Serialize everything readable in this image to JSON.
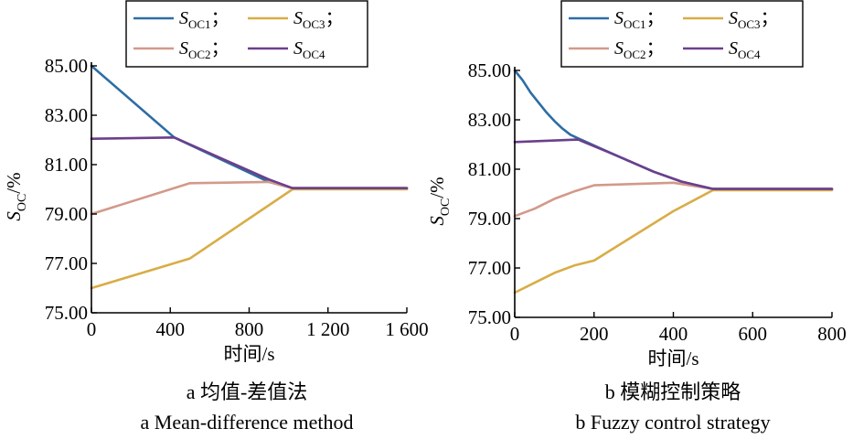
{
  "chart_data": [
    {
      "type": "line",
      "caption_cn": "a 均值-差值法",
      "caption_en": "a Mean-difference method",
      "xlabel": "时间/s",
      "ylabel": "S",
      "ylabel_sub": "OC",
      "ylabel_unit": "/%",
      "xlim": [
        0,
        1600
      ],
      "ylim": [
        75,
        85
      ],
      "xticks": [
        0,
        400,
        800,
        1200,
        1600
      ],
      "xtick_labels": [
        "0",
        "400",
        "800",
        "1 200",
        "1 600"
      ],
      "yticks": [
        75,
        77,
        79,
        81,
        83,
        85
      ],
      "ytick_labels": [
        "75.00",
        "77.00",
        "79.00",
        "81.00",
        "83.00",
        "85.00"
      ],
      "legend_position": "top",
      "series": [
        {
          "name": "SOC1",
          "color": "#2e6da4",
          "x": [
            0,
            420,
            900,
            1020,
            1600
          ],
          "y": [
            85.0,
            82.1,
            80.3,
            80.05,
            80.05
          ]
        },
        {
          "name": "SOC2",
          "color": "#d3998a",
          "x": [
            0,
            500,
            900,
            1020,
            1600
          ],
          "y": [
            79.0,
            80.25,
            80.3,
            80.05,
            80.05
          ]
        },
        {
          "name": "SOC3",
          "color": "#d8ad47",
          "x": [
            0,
            500,
            1020,
            1600
          ],
          "y": [
            76.0,
            77.2,
            80.0,
            80.0
          ]
        },
        {
          "name": "SOC4",
          "color": "#6b3f8c",
          "x": [
            0,
            420,
            900,
            1020,
            1600
          ],
          "y": [
            82.05,
            82.1,
            80.4,
            80.05,
            80.05
          ]
        }
      ]
    },
    {
      "type": "line",
      "caption_cn": "b 模糊控制策略",
      "caption_en": "b Fuzzy control strategy",
      "xlabel": "时间/s",
      "ylabel": "S",
      "ylabel_sub": "OC",
      "ylabel_unit": "/%",
      "xlim": [
        0,
        800
      ],
      "ylim": [
        75,
        85
      ],
      "xticks": [
        0,
        200,
        400,
        600,
        800
      ],
      "xtick_labels": [
        "0",
        "200",
        "400",
        "600",
        "800"
      ],
      "yticks": [
        75,
        77,
        79,
        81,
        83,
        85
      ],
      "ytick_labels": [
        "75.00",
        "77.00",
        "79.00",
        "81.00",
        "83.00",
        "85.00"
      ],
      "legend_position": "top",
      "series": [
        {
          "name": "SOC1",
          "color": "#2e6da4",
          "x": [
            0,
            20,
            40,
            60,
            80,
            100,
            120,
            140,
            160,
            250,
            350,
            420,
            500,
            800
          ],
          "y": [
            85.0,
            84.6,
            84.1,
            83.7,
            83.3,
            82.95,
            82.65,
            82.4,
            82.25,
            81.6,
            80.9,
            80.5,
            80.2,
            80.2
          ]
        },
        {
          "name": "SOC2",
          "color": "#d3998a",
          "x": [
            0,
            50,
            100,
            150,
            200,
            300,
            400,
            500,
            800
          ],
          "y": [
            79.1,
            79.4,
            79.8,
            80.1,
            80.35,
            80.4,
            80.45,
            80.2,
            80.2
          ]
        },
        {
          "name": "SOC3",
          "color": "#d8ad47",
          "x": [
            0,
            50,
            100,
            150,
            200,
            300,
            400,
            500,
            800
          ],
          "y": [
            76.0,
            76.4,
            76.8,
            77.1,
            77.3,
            78.3,
            79.3,
            80.15,
            80.15
          ]
        },
        {
          "name": "SOC4",
          "color": "#6b3f8c",
          "x": [
            0,
            160,
            250,
            350,
            420,
            500,
            800
          ],
          "y": [
            82.1,
            82.2,
            81.6,
            80.9,
            80.5,
            80.2,
            80.2
          ]
        }
      ]
    }
  ],
  "legend": {
    "items": [
      {
        "main": "S",
        "sub": "OC1",
        "sep": "；",
        "color": "#2e6da4"
      },
      {
        "main": "S",
        "sub": "OC3",
        "sep": "；",
        "color": "#d8ad47"
      },
      {
        "main": "S",
        "sub": "OC2",
        "sep": "；",
        "color": "#d3998a"
      },
      {
        "main": "S",
        "sub": "OC4",
        "sep": "",
        "color": "#6b3f8c"
      }
    ]
  }
}
